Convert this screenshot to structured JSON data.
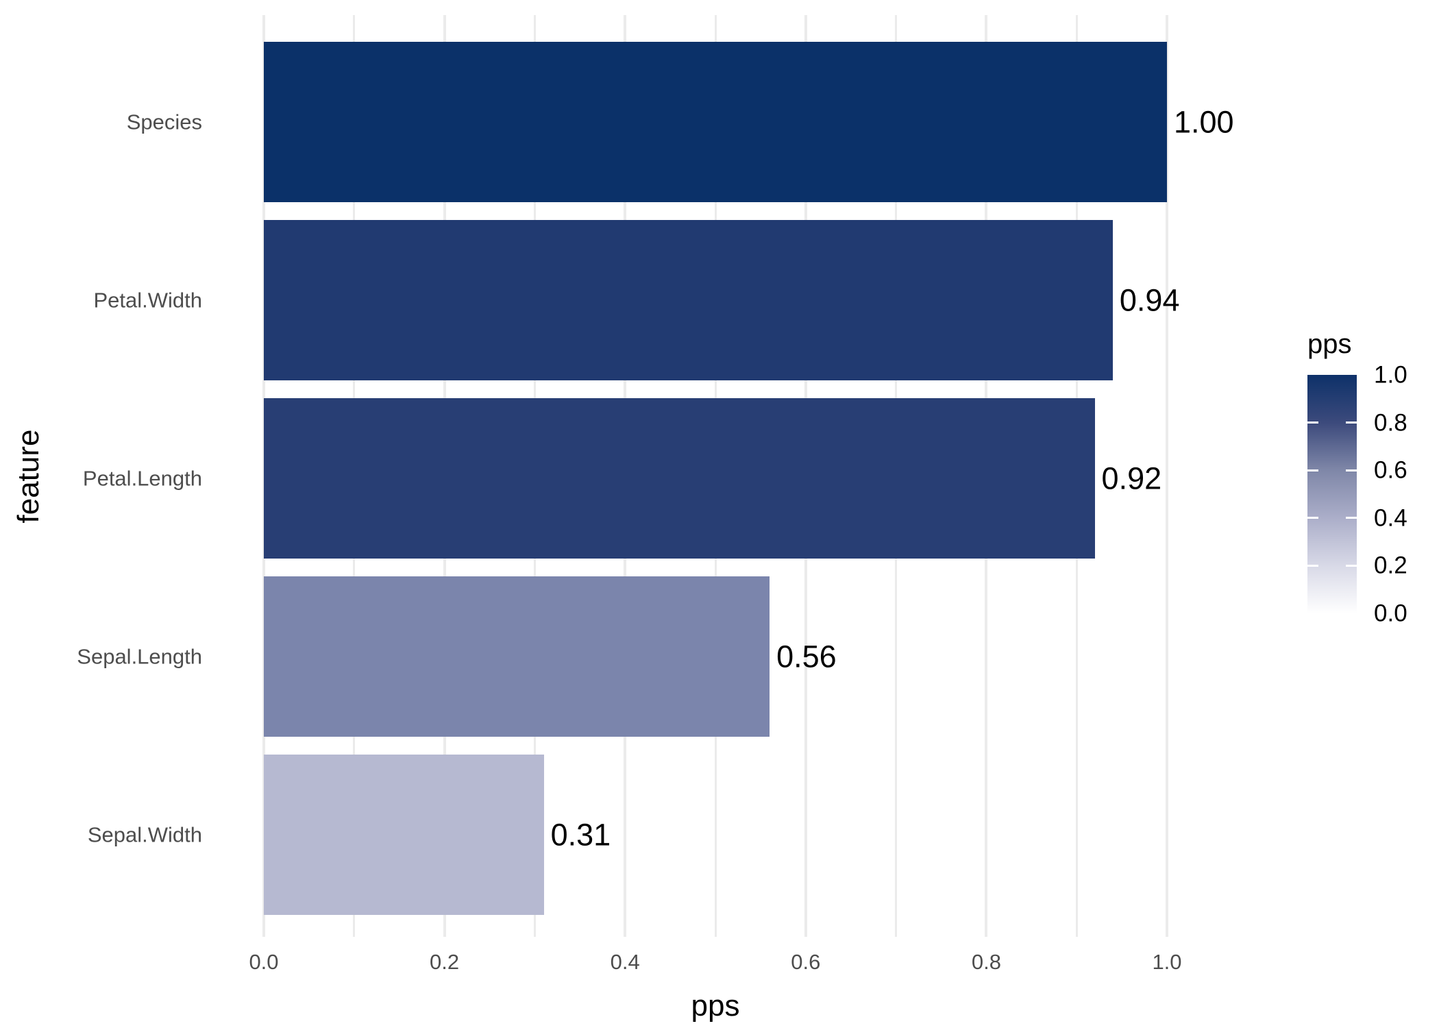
{
  "chart_data": {
    "type": "bar",
    "orientation": "horizontal",
    "title": "",
    "xlabel": "pps",
    "ylabel": "feature",
    "categories": [
      "Species",
      "Petal.Width",
      "Petal.Length",
      "Sepal.Length",
      "Sepal.Width"
    ],
    "values": [
      1.0,
      0.94,
      0.92,
      0.56,
      0.31
    ],
    "value_labels": [
      "1.00",
      "0.94",
      "0.92",
      "0.56",
      "0.31"
    ],
    "bar_colors": [
      "#0b3169",
      "#213a71",
      "#283e74",
      "#7b85ac",
      "#b6b9d1"
    ],
    "xlim": [
      0,
      1.05
    ],
    "x_ticks": [
      "0.0",
      "0.2",
      "0.4",
      "0.6",
      "0.8",
      "1.0"
    ],
    "x_tick_values": [
      0,
      0.2,
      0.4,
      0.6,
      0.8,
      1.0
    ],
    "minor_gridline_step": 0.1,
    "grid": "vertical-only",
    "legend": {
      "title": "pps",
      "position": "right",
      "type": "colorbar",
      "tick_labels": [
        "1.0",
        "0.8",
        "0.6",
        "0.4",
        "0.2",
        "0.0"
      ],
      "tick_values": [
        1.0,
        0.8,
        0.6,
        0.4,
        0.2,
        0.0
      ],
      "gradient_stops_top_to_bottom": [
        "#0d3169",
        "#3c4a7c",
        "#7f87a8",
        "#abaec9",
        "#d8d9e7",
        "#ffffff"
      ]
    },
    "colors": {
      "gridline": "#ebebeb",
      "tick_label": "#4d4d4d",
      "axis_title": "#000000",
      "value_label": "#000000",
      "background": "#ffffff"
    }
  }
}
